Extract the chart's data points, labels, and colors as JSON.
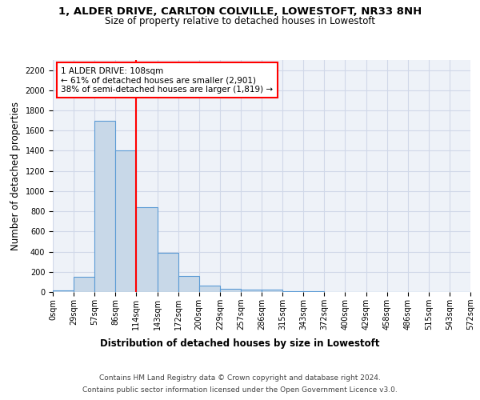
{
  "title": "1, ALDER DRIVE, CARLTON COLVILLE, LOWESTOFT, NR33 8NH",
  "subtitle": "Size of property relative to detached houses in Lowestoft",
  "xlabel": "Distribution of detached houses by size in Lowestoft",
  "ylabel": "Number of detached properties",
  "bin_labels": [
    "0sqm",
    "29sqm",
    "57sqm",
    "86sqm",
    "114sqm",
    "143sqm",
    "172sqm",
    "200sqm",
    "229sqm",
    "257sqm",
    "286sqm",
    "315sqm",
    "343sqm",
    "372sqm",
    "400sqm",
    "429sqm",
    "458sqm",
    "486sqm",
    "515sqm",
    "543sqm",
    "572sqm"
  ],
  "bar_values": [
    15,
    150,
    1700,
    1400,
    840,
    390,
    160,
    65,
    35,
    25,
    20,
    5,
    10,
    0,
    0,
    0,
    0,
    0,
    0,
    0
  ],
  "bar_color": "#c8d8e8",
  "bar_edge_color": "#5b9bd5",
  "vline_x": 4,
  "vline_color": "red",
  "annotation_text": "1 ALDER DRIVE: 108sqm\n← 61% of detached houses are smaller (2,901)\n38% of semi-detached houses are larger (1,819) →",
  "annotation_box_color": "white",
  "annotation_box_edge_color": "red",
  "ylim": [
    0,
    2300
  ],
  "yticks": [
    0,
    200,
    400,
    600,
    800,
    1000,
    1200,
    1400,
    1600,
    1800,
    2000,
    2200
  ],
  "grid_color": "#d0d8e8",
  "background_color": "#eef2f8",
  "footer_line1": "Contains HM Land Registry data © Crown copyright and database right 2024.",
  "footer_line2": "Contains public sector information licensed under the Open Government Licence v3.0.",
  "title_fontsize": 9.5,
  "subtitle_fontsize": 8.5,
  "axis_label_fontsize": 8.5,
  "tick_fontsize": 7,
  "annotation_fontsize": 7.5,
  "footer_fontsize": 6.5
}
